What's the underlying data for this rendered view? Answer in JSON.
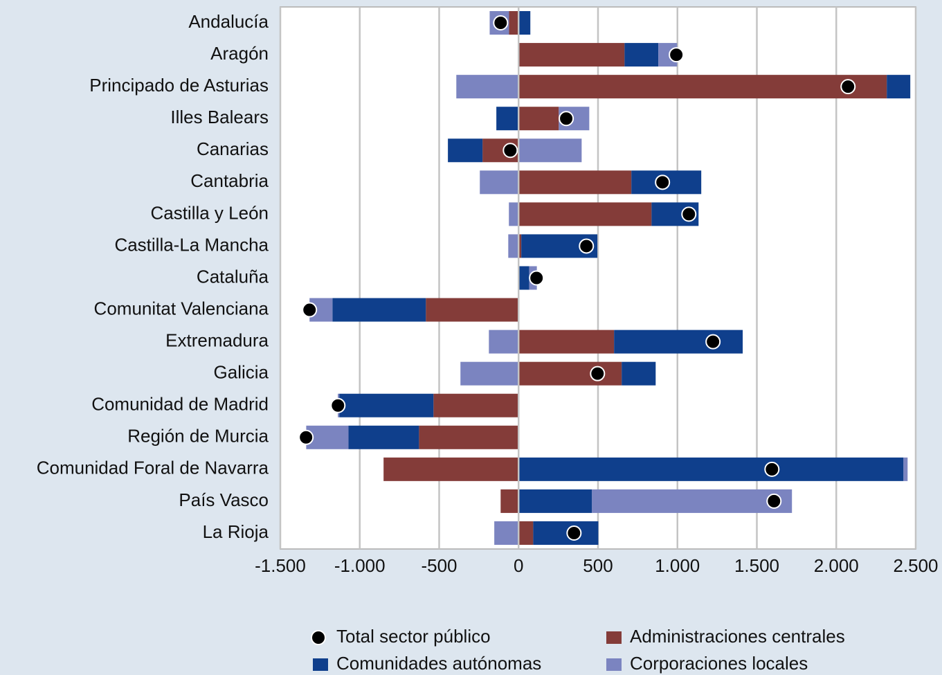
{
  "chart_data": {
    "type": "diverging-stacked-bar",
    "categories": [
      "Andalucía",
      "Aragón",
      "Principado de Asturias",
      "Illes Balears",
      "Canarias",
      "Cantabria",
      "Castilla y León",
      "Castilla-La Mancha",
      "Cataluña",
      "Comunitat Valenciana",
      "Extremadura",
      "Galicia",
      "Comunidad de Madrid",
      "Región de Murcia",
      "Comunidad Foral de Navarra",
      "País Vasco",
      "La Rioja"
    ],
    "series": [
      {
        "name": "Administraciones centrales",
        "color": "#843c39",
        "values": [
          -60,
          667,
          2318,
          253,
          -227,
          710,
          837,
          17,
          5,
          -584,
          601,
          649,
          -536,
          -627,
          -850,
          -113,
          92
        ]
      },
      {
        "name": "Comunidades autónomas",
        "color": "#0f3f8c",
        "values": [
          74,
          213,
          148,
          -140,
          -218,
          440,
          296,
          479,
          62,
          -588,
          810,
          214,
          -593,
          -444,
          2423,
          462,
          410
        ]
      },
      {
        "name": "Corporaciones locales",
        "color": "#7b84c0",
        "values": [
          -122,
          118,
          -392,
          192,
          397,
          -244,
          -61,
          -65,
          48,
          -144,
          -187,
          -366,
          -9,
          -266,
          26,
          1259,
          -153
        ]
      }
    ],
    "total": {
      "name": "Total sector público",
      "color": "#000000",
      "values": [
        -113,
        993,
        2074,
        300,
        -52,
        906,
        1072,
        427,
        113,
        -1316,
        1224,
        497,
        -1137,
        -1338,
        1595,
        1608,
        349
      ]
    },
    "xlim": [
      -1500,
      2500
    ],
    "xticks": [
      {
        "value": -1500,
        "label": "-1.500"
      },
      {
        "value": -1000,
        "label": "-1.000"
      },
      -500,
      0,
      500,
      {
        "value": 1000,
        "label": "1.000"
      },
      {
        "value": 1500,
        "label": "1.500"
      },
      {
        "value": 2000,
        "label": "2.000"
      },
      {
        "value": 2500,
        "label": "2.500"
      }
    ],
    "grid": true,
    "legend": "bottom"
  }
}
